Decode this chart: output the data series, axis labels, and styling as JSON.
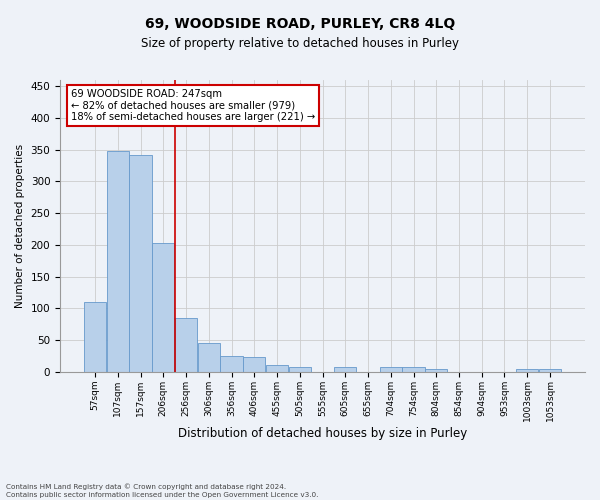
{
  "title": "69, WOODSIDE ROAD, PURLEY, CR8 4LQ",
  "subtitle": "Size of property relative to detached houses in Purley",
  "xlabel": "Distribution of detached houses by size in Purley",
  "ylabel": "Number of detached properties",
  "footnote": "Contains HM Land Registry data © Crown copyright and database right 2024.\nContains public sector information licensed under the Open Government Licence v3.0.",
  "bar_labels": [
    "57sqm",
    "107sqm",
    "157sqm",
    "206sqm",
    "256sqm",
    "306sqm",
    "356sqm",
    "406sqm",
    "455sqm",
    "505sqm",
    "555sqm",
    "605sqm",
    "655sqm",
    "704sqm",
    "754sqm",
    "804sqm",
    "854sqm",
    "904sqm",
    "953sqm",
    "1003sqm",
    "1053sqm"
  ],
  "bar_values": [
    110,
    348,
    341,
    203,
    84,
    46,
    25,
    23,
    11,
    7,
    0,
    7,
    0,
    8,
    7,
    4,
    0,
    0,
    0,
    4,
    4
  ],
  "bar_color": "#b8d0ea",
  "bar_edge_color": "#6699cc",
  "grid_color": "#cccccc",
  "bg_color": "#eef2f8",
  "annotation_text": "69 WOODSIDE ROAD: 247sqm\n← 82% of detached houses are smaller (979)\n18% of semi-detached houses are larger (221) →",
  "annotation_box_color": "#ffffff",
  "annotation_box_edge": "#cc0000",
  "red_line_index": 4,
  "ylim": [
    0,
    460
  ],
  "yticks": [
    0,
    50,
    100,
    150,
    200,
    250,
    300,
    350,
    400,
    450
  ]
}
